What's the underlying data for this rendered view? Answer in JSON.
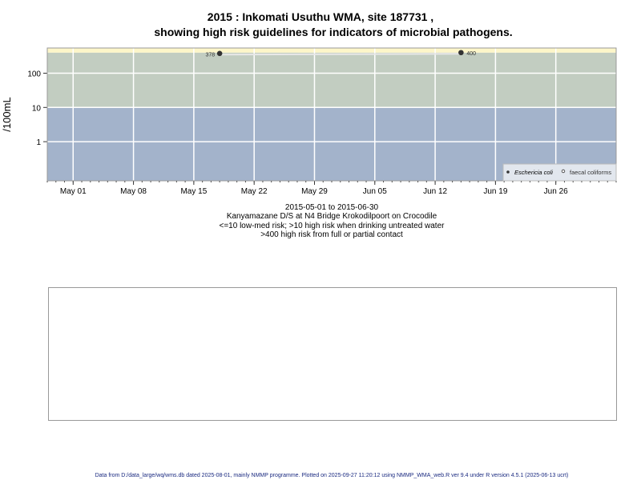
{
  "chart_data": {
    "type": "scatter",
    "title": [
      "2015 : Inkomati Usuthu WMA, site 187731 ,",
      "showing high risk guidelines for indicators of microbial pathogens."
    ],
    "ylabel": "/100mL",
    "yscale": "log",
    "ylim": [
      0.072,
      545
    ],
    "yticks": [
      {
        "v": 1,
        "label": "1"
      },
      {
        "v": 10,
        "label": "10"
      },
      {
        "v": 100,
        "label": "100"
      }
    ],
    "xlim": [
      "2015-04-28",
      "2015-07-03"
    ],
    "xticks": [
      {
        "date": "2015-05-01",
        "label": "May 01"
      },
      {
        "date": "2015-05-08",
        "label": "May 08"
      },
      {
        "date": "2015-05-15",
        "label": "May 15"
      },
      {
        "date": "2015-05-22",
        "label": "May 22"
      },
      {
        "date": "2015-05-29",
        "label": "May 29"
      },
      {
        "date": "2015-06-05",
        "label": "Jun 05"
      },
      {
        "date": "2015-06-12",
        "label": "Jun 12"
      },
      {
        "date": "2015-06-19",
        "label": "Jun 19"
      },
      {
        "date": "2015-06-26",
        "label": "Jun 26"
      }
    ],
    "grid": true,
    "bands": [
      {
        "from": 0,
        "to": 10,
        "color": "#a3b3cb"
      },
      {
        "from": 10,
        "to": 400,
        "color": "#c2cdc1"
      },
      {
        "from": 400,
        "to": 100000,
        "color": "#fdf6c9"
      }
    ],
    "series": [
      {
        "name": "Eschericia coli",
        "marker": "filled",
        "points": [
          {
            "date": "2015-05-18",
            "value": 378,
            "label": "378"
          },
          {
            "date": "2015-06-15",
            "value": 400,
            "label": "400"
          }
        ]
      },
      {
        "name": "faecal coliforms",
        "marker": "open",
        "points": []
      }
    ],
    "legend": "bottom-right",
    "caption": [
      "2015-05-01 to 2015-06-30",
      "Kanyamazane D/S at N4 Bridge Krokodilpoort on Crocodile",
      "<=10 low-med risk; >10 high risk when drinking untreated water",
      ">400 high risk from full or partial contact"
    ]
  },
  "footer": "Data from D:/data_large/wq/wms.db dated 2025-08-01, mainly NMMP programme. Plotted on 2025-09-27 11:20:12 using NMMP_WMA_web.R ver 9.4 under R version 4.5.1 (2025-06-13 ucrt)"
}
